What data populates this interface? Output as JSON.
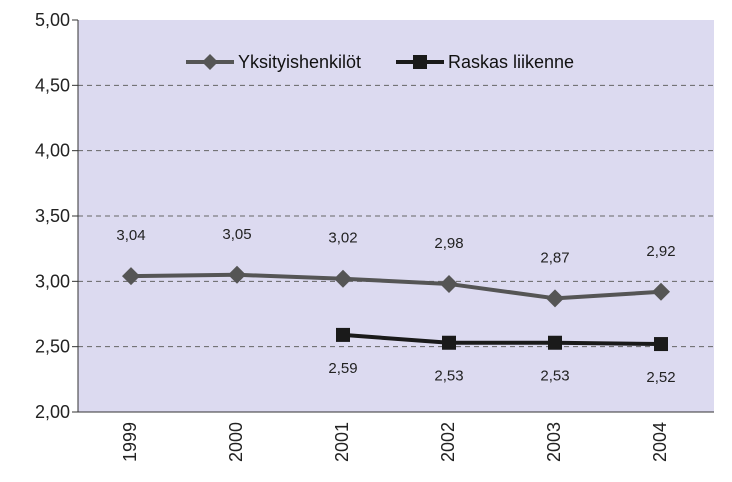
{
  "chart_data": {
    "type": "line",
    "categories": [
      "1999",
      "2000",
      "2001",
      "2002",
      "2003",
      "2004"
    ],
    "ylim": [
      2.0,
      5.0
    ],
    "yticks": [
      "2,00",
      "2,50",
      "3,00",
      "3,50",
      "4,00",
      "4,50",
      "5,00"
    ],
    "grid": true,
    "legend_position": "top",
    "series": [
      {
        "name": "Yksityishenkilöt",
        "marker": "diamond",
        "color": "#555555",
        "values": [
          3.04,
          3.05,
          3.02,
          2.98,
          2.87,
          2.92
        ],
        "labels": [
          "3,04",
          "3,05",
          "3,02",
          "2,98",
          "2,87",
          "2,92"
        ],
        "label_position": "above"
      },
      {
        "name": "Raskas liikenne",
        "marker": "square",
        "color": "#1a1a1a",
        "values": [
          null,
          null,
          2.59,
          2.53,
          2.53,
          2.52
        ],
        "labels": [
          null,
          null,
          "2,59",
          "2,53",
          "2,53",
          "2,52"
        ],
        "label_position": "below"
      }
    ],
    "plot_background": "#dcdaf0"
  }
}
